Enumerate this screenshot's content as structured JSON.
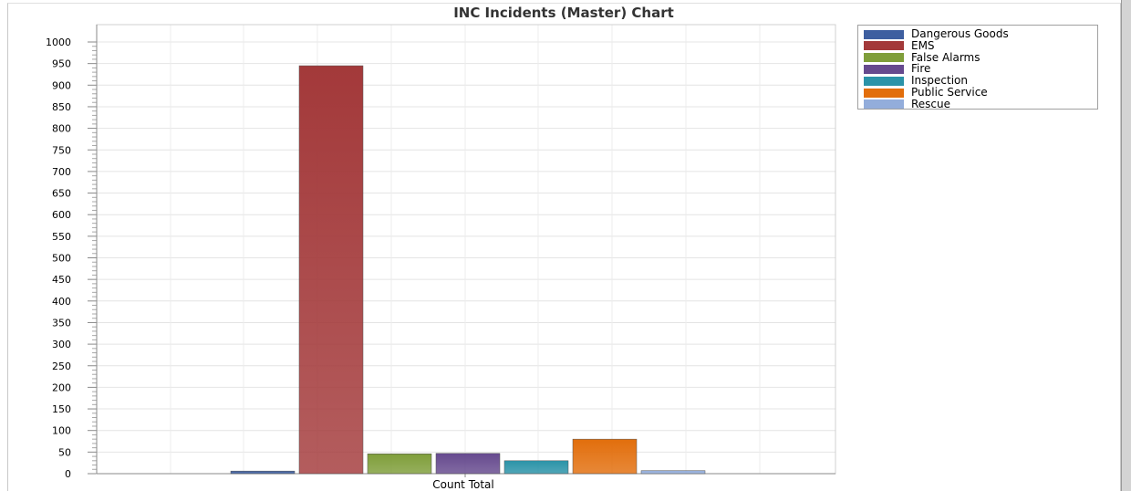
{
  "chart_data": {
    "type": "bar",
    "title": "INC  Incidents (Master) Chart",
    "categories": [
      "Count Total"
    ],
    "series": [
      {
        "name": "Dangerous Goods",
        "values": [
          6
        ],
        "color": "#3e5fa0"
      },
      {
        "name": "EMS",
        "values": [
          945
        ],
        "color": "#a3393a"
      },
      {
        "name": "False Alarms",
        "values": [
          46
        ],
        "color": "#7f9e3a"
      },
      {
        "name": "Fire",
        "values": [
          47
        ],
        "color": "#664a8e"
      },
      {
        "name": "Inspection",
        "values": [
          30
        ],
        "color": "#2b93a8"
      },
      {
        "name": "Public Service",
        "values": [
          80
        ],
        "color": "#e26e0c"
      },
      {
        "name": "Rescue",
        "values": [
          7
        ],
        "color": "#93addb"
      }
    ],
    "ylim": [
      0,
      1000
    ],
    "yticks": [
      0,
      50,
      100,
      150,
      200,
      250,
      300,
      350,
      400,
      450,
      500,
      550,
      600,
      650,
      700,
      750,
      800,
      850,
      900,
      950,
      1000
    ],
    "xlabel": "",
    "ylabel": "",
    "grid": true,
    "legend_position": "top-right"
  }
}
